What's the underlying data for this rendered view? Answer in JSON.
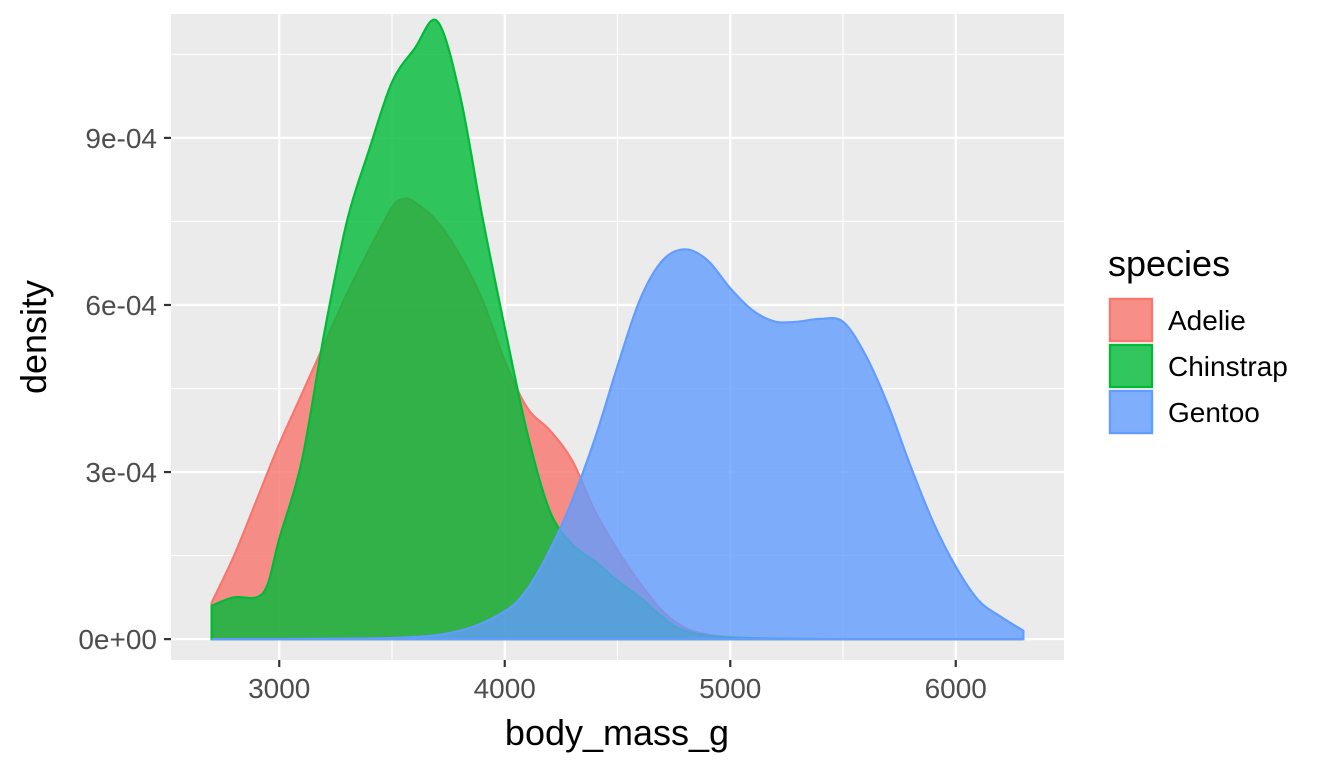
{
  "chart_data": {
    "type": "area",
    "title": "",
    "xlabel": "body_mass_g",
    "ylabel": "density",
    "xlim": [
      2520,
      6480
    ],
    "ylim": [
      -3.75e-05,
      0.0011225
    ],
    "x_ticks": [
      3000,
      4000,
      5000,
      6000
    ],
    "x_tick_labels": [
      "3000",
      "4000",
      "5000",
      "6000"
    ],
    "y_ticks": [
      0,
      0.0003,
      0.0006,
      0.0009
    ],
    "y_tick_labels": [
      "0e+00",
      "3e-04",
      "6e-04",
      "9e-04"
    ],
    "grid": true,
    "legend": {
      "title": "species",
      "position": "right"
    },
    "series": [
      {
        "name": "Adelie",
        "color": "#F8766D",
        "x": [
          2700,
          2800,
          2900,
          3000,
          3100,
          3200,
          3300,
          3400,
          3500,
          3550,
          3600,
          3700,
          3800,
          3900,
          4000,
          4100,
          4200,
          4300,
          4400,
          4500,
          4600,
          4700,
          4800,
          4900,
          5000,
          5200,
          5500,
          6300
        ],
        "values": [
          6.5e-05,
          0.00015,
          0.00025,
          0.00035,
          0.00044,
          0.00053,
          0.00062,
          0.0007,
          0.000775,
          0.00079,
          0.000785,
          0.00075,
          0.00069,
          0.00061,
          0.0005,
          0.000415,
          0.000375,
          0.00032,
          0.00023,
          0.00016,
          0.0001,
          5e-05,
          2e-05,
          8e-06,
          3e-06,
          0,
          0,
          0
        ]
      },
      {
        "name": "Chinstrap",
        "color": "#00BA38",
        "x": [
          2700,
          2800,
          2900,
          2950,
          3000,
          3100,
          3200,
          3300,
          3400,
          3500,
          3600,
          3700,
          3800,
          3900,
          4000,
          4100,
          4200,
          4300,
          4400,
          4500,
          4600,
          4700,
          4800,
          5000,
          5500,
          6300
        ],
        "values": [
          6e-05,
          7.5e-05,
          7.5e-05,
          0.0001,
          0.00018,
          0.00032,
          0.00055,
          0.00075,
          0.00088,
          0.001,
          0.00106,
          0.00111,
          0.00098,
          0.00076,
          0.00056,
          0.00037,
          0.00023,
          0.00017,
          0.00014,
          0.000105,
          7.5e-05,
          4e-05,
          1.5e-05,
          3e-06,
          0,
          0
        ]
      },
      {
        "name": "Gentoo",
        "color": "#619CFF",
        "x": [
          2700,
          3500,
          3800,
          4000,
          4100,
          4200,
          4300,
          4400,
          4500,
          4600,
          4700,
          4800,
          4900,
          5000,
          5100,
          5200,
          5300,
          5400,
          5500,
          5600,
          5700,
          5800,
          5900,
          6000,
          6100,
          6200,
          6300
        ],
        "values": [
          0,
          2e-06,
          1.5e-05,
          5e-05,
          9e-05,
          0.00016,
          0.00025,
          0.00036,
          0.00049,
          0.00061,
          0.00068,
          0.0007,
          0.00068,
          0.00063,
          0.00059,
          0.00057,
          0.00057,
          0.000575,
          0.00057,
          0.00051,
          0.00042,
          0.00031,
          0.00021,
          0.00013,
          7e-05,
          4e-05,
          1.5e-05
        ]
      }
    ]
  }
}
